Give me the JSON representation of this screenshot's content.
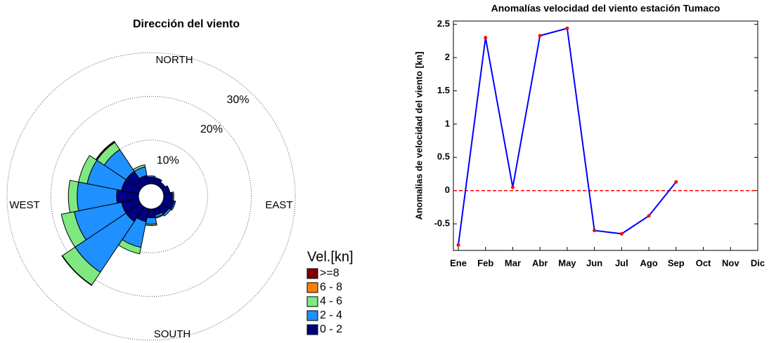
{
  "chart_data": [
    {
      "type": "windrose",
      "title": "Dirección del viento",
      "direction_labels": [
        "NORTH",
        "EAST",
        "SOUTH",
        "WEST"
      ],
      "theta": [
        0,
        22.5,
        45,
        67.5,
        90,
        112.5,
        135,
        157.5,
        180,
        202.5,
        225,
        247.5,
        270,
        292.5,
        315,
        337.5
      ],
      "series": [
        {
          "name": "0 - 2",
          "color": "#000080",
          "values": [
            1.5,
            1.5,
            1,
            1.5,
            2,
            2.5,
            2,
            1.5,
            2,
            3,
            4,
            4,
            5,
            4,
            4,
            2
          ]
        },
        {
          "name": "2 - 4",
          "color": "#1e90ff",
          "values": [
            0.3,
            0,
            0,
            0,
            0.3,
            0.3,
            0.5,
            0.5,
            1.5,
            6,
            14,
            11,
            9,
            8,
            6,
            2
          ]
        },
        {
          "name": "4 - 6",
          "color": "#80e880",
          "values": [
            0,
            0,
            0,
            0,
            0,
            0,
            0,
            0.2,
            0.3,
            1.5,
            3.5,
            3,
            2,
            2,
            2,
            0.5
          ]
        },
        {
          "name": "6 - 8",
          "color": "#ff8000",
          "values": [
            0,
            0,
            0,
            0,
            0,
            0,
            0,
            0,
            0,
            0,
            0,
            0,
            0,
            0,
            0.1,
            0
          ]
        },
        {
          "name": ">=8",
          "color": "#800000",
          "values": [
            0,
            0,
            0,
            0,
            0,
            0,
            0,
            0,
            0,
            0,
            0.1,
            0,
            0,
            0,
            0.2,
            0
          ]
        }
      ],
      "legend_title": "Vel.[kn]",
      "rlim": [
        0,
        30
      ],
      "rticks": [
        {
          "value": 10,
          "label": "10%"
        },
        {
          "value": 20,
          "label": "20%"
        },
        {
          "value": 30,
          "label": "30%"
        }
      ]
    },
    {
      "type": "line",
      "title": "Anomalías velocidad del viento estación Tumaco",
      "y_label": "Anomalias de velocidad del viento [kn]",
      "categories": [
        "Ene",
        "Feb",
        "Mar",
        "Abr",
        "May",
        "Jun",
        "Jul",
        "Ago",
        "Sep",
        "Oct",
        "Nov",
        "Dic"
      ],
      "series": [
        {
          "color": "#0000ff",
          "marker_color": "#ff0000",
          "values": [
            -0.82,
            2.3,
            0.05,
            2.33,
            2.44,
            -0.6,
            -0.65,
            -0.38,
            0.13,
            null,
            null,
            null
          ]
        }
      ],
      "reference_line": {
        "value": 0,
        "color": "#ff0000"
      },
      "ylim": [
        -0.9,
        2.55
      ],
      "yticks": [
        -0.5,
        0,
        0.5,
        1,
        1.5,
        2,
        2.5
      ]
    }
  ]
}
